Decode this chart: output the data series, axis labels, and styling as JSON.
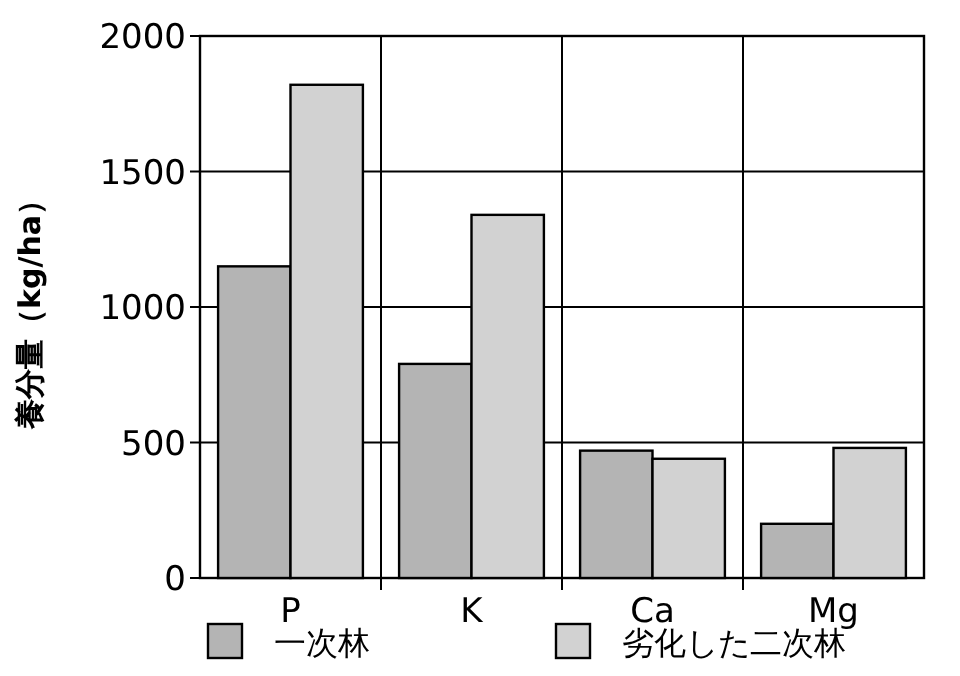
{
  "chart_data": {
    "type": "bar",
    "ylabel": "養分量（kg/ha）",
    "categories": [
      "P",
      "K",
      "Ca",
      "Mg"
    ],
    "series": [
      {
        "name": "一次林",
        "color": "#b4b4b4",
        "values": [
          1150,
          790,
          470,
          200
        ]
      },
      {
        "name": "劣化した二次林",
        "color": "#d2d2d2",
        "values": [
          1820,
          1340,
          440,
          480
        ]
      }
    ],
    "ylim": [
      0,
      2000
    ],
    "yticks": [
      0,
      500,
      1000,
      1500,
      2000
    ],
    "grid": true,
    "legend": "bottom"
  }
}
